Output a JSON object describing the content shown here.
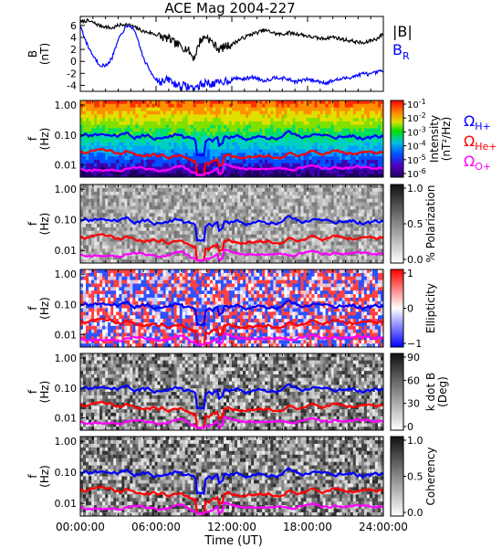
{
  "chart_data": {
    "title": "ACE Mag 2004-227",
    "xlabel": "Time (UT)",
    "x_ticks": [
      "00:00:00",
      "06:00:00",
      "12:00:00",
      "18:00:00",
      "24:00:00"
    ],
    "x_range_hours": [
      0,
      24
    ],
    "colors": {
      "B": "#000000",
      "BR": "#0000ff",
      "H": "#0000ff",
      "He": "#ff0000",
      "O": "#ff00ff"
    },
    "panels": [
      {
        "type": "line",
        "ylabel": [
          "B",
          "(nT)"
        ],
        "yticks": [
          -4,
          -2,
          0,
          2,
          4,
          6
        ],
        "ylim": [
          -5,
          7.5
        ],
        "legend": [
          {
            "text": "|B|",
            "sub": "",
            "color": "#000000"
          },
          {
            "text": "B",
            "sub": "R",
            "color": "#0000ff"
          }
        ],
        "series": [
          {
            "name": "|B|",
            "color": "#000000",
            "x": [
              0,
              0.5,
              1,
              1.5,
              2,
              2.5,
              3,
              3.5,
              4,
              4.5,
              5,
              5.5,
              6,
              6.5,
              7,
              7.5,
              8,
              8.5,
              9,
              9.5,
              10,
              10.5,
              11,
              11.5,
              12,
              12.5,
              13,
              13.5,
              14,
              14.5,
              15,
              15.5,
              16,
              16.5,
              17,
              17.5,
              18,
              18.5,
              19,
              19.5,
              20,
              20.5,
              21,
              21.5,
              22,
              22.5,
              23,
              23.5,
              24
            ],
            "y": [
              6.5,
              6.8,
              6.5,
              6.0,
              5.8,
              5.5,
              6.0,
              6.2,
              6.0,
              5.5,
              5.0,
              4.8,
              4.5,
              4.0,
              3.8,
              3.0,
              2.5,
              2.0,
              0.5,
              3.5,
              4.2,
              3.0,
              2.0,
              2.5,
              2.8,
              3.5,
              4.0,
              4.5,
              4.8,
              5.2,
              5.0,
              4.6,
              4.5,
              4.8,
              4.6,
              4.5,
              4.2,
              4.0,
              3.8,
              3.9,
              4.1,
              3.8,
              3.6,
              3.4,
              3.2,
              3.0,
              3.5,
              3.8,
              4.6
            ]
          },
          {
            "name": "BR",
            "color": "#0000ff",
            "x": [
              0,
              0.5,
              1,
              1.5,
              2,
              2.5,
              3,
              3.5,
              4,
              4.5,
              5,
              5.5,
              6,
              6.5,
              7,
              7.5,
              8,
              8.5,
              9,
              9.5,
              10,
              10.5,
              11,
              11.5,
              12,
              12.5,
              13,
              13.5,
              14,
              14.5,
              15,
              15.5,
              16,
              16.5,
              17,
              17.5,
              18,
              18.5,
              19,
              19.5,
              20,
              20.5,
              21,
              21.5,
              22,
              22.5,
              23,
              23.5,
              24
            ],
            "y": [
              6.0,
              3.0,
              1.0,
              -0.5,
              -0.8,
              0.5,
              3.5,
              5.5,
              6.0,
              4.0,
              0.5,
              -1.5,
              -3.0,
              -3.5,
              -3.0,
              -3.8,
              -4.0,
              -4.2,
              -4.5,
              -4.0,
              -3.5,
              -3.8,
              -3.6,
              -3.2,
              -3.0,
              -2.8,
              -3.0,
              -2.6,
              -2.8,
              -3.2,
              -3.0,
              -2.6,
              -2.8,
              -3.0,
              -3.4,
              -3.2,
              -3.0,
              -3.2,
              -3.4,
              -3.6,
              -3.2,
              -3.0,
              -2.8,
              -2.6,
              -2.3,
              -2.0,
              -2.2,
              -1.8,
              -1.6
            ]
          }
        ]
      },
      {
        "type": "heatmap",
        "ylabel": [
          "f",
          "(Hz)"
        ],
        "yticks": [
          "1.00",
          "0.10",
          "0.01"
        ],
        "cbar_style": "rainbow",
        "cbar_label": [
          "Intensity",
          "(nT²/Hz)"
        ],
        "cbar_ticks": [
          {
            "base": "10",
            "exp": "-1"
          },
          {
            "base": "10",
            "exp": "-2"
          },
          {
            "base": "10",
            "exp": "-3"
          },
          {
            "base": "10",
            "exp": "-4"
          },
          {
            "base": "10",
            "exp": "-5"
          },
          {
            "base": "10",
            "exp": "-6"
          }
        ],
        "side_labels": [
          {
            "text": "Ω",
            "sub": "H+",
            "color": "#0000ff"
          },
          {
            "text": "Ω",
            "sub": "He+",
            "color": "#ff0000"
          },
          {
            "text": "Ω",
            "sub": "O+",
            "color": "#ff00ff"
          }
        ]
      },
      {
        "type": "heatmap",
        "ylabel": [
          "f",
          "(Hz)"
        ],
        "yticks": [
          "1.00",
          "0.10",
          "0.01"
        ],
        "cbar_style": "gray",
        "cbar_label": [
          "% Polarization"
        ],
        "cbar_ticks": [
          "1.0",
          "0.5",
          "0.0"
        ]
      },
      {
        "type": "heatmap",
        "ylabel": [
          "f",
          "(Hz)"
        ],
        "yticks": [
          "1.00",
          "0.10",
          "0.01"
        ],
        "cbar_style": "bwr",
        "cbar_label": [
          "Ellipticity"
        ],
        "cbar_ticks": [
          "1",
          "0",
          "−1"
        ]
      },
      {
        "type": "heatmap",
        "ylabel": [
          "f",
          "(Hz)"
        ],
        "yticks": [
          "1.00",
          "0.10",
          "0.01"
        ],
        "cbar_style": "gray",
        "cbar_label": [
          "k dot B",
          "(Deg)"
        ],
        "cbar_ticks": [
          "90",
          "60",
          "30",
          "0"
        ]
      },
      {
        "type": "heatmap",
        "ylabel": [
          "f",
          "(Hz)"
        ],
        "yticks": [
          "1.00",
          "0.10",
          "0.01"
        ],
        "cbar_style": "gray",
        "cbar_label": [
          "Coherency"
        ],
        "cbar_ticks": [
          "1.0",
          "0.5",
          "0.0"
        ]
      }
    ]
  }
}
